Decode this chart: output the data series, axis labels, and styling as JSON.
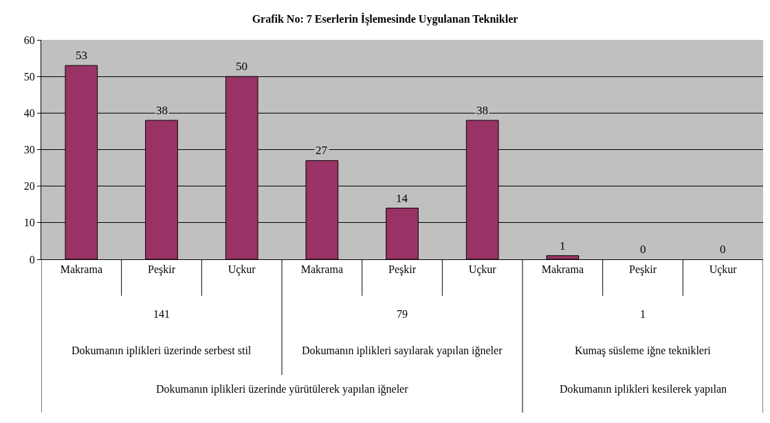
{
  "chart_data": {
    "type": "bar",
    "title": "Grafik No: 7 Eserlerin İşlemesinde Uygulanan Teknikler",
    "categories": [
      "Makrama",
      "Peşkir",
      "Uçkur",
      "Makrama",
      "Peşkir",
      "Uçkur",
      "Makrama",
      "Peşkir",
      "Uçkur"
    ],
    "values": [
      53,
      38,
      50,
      27,
      14,
      38,
      1,
      0,
      0
    ],
    "color": "#993366",
    "ylim": [
      0,
      60
    ],
    "yticks": [
      0,
      10,
      20,
      30,
      40,
      50,
      60
    ],
    "grid": "y",
    "data_labels": true,
    "annotations": [
      "141",
      "79",
      "1",
      "Dokumanın iplikleri üzerinde serbest stil",
      "Dokumanın iplikleri sayılarak yapılan iğneler",
      "Kumaş süsleme iğne teknikleri",
      "Dokumanın iplikleri üzerinde yürütülerek yapılan iğneler",
      "Dokumanın iplikleri kesilerek yapılan"
    ]
  }
}
